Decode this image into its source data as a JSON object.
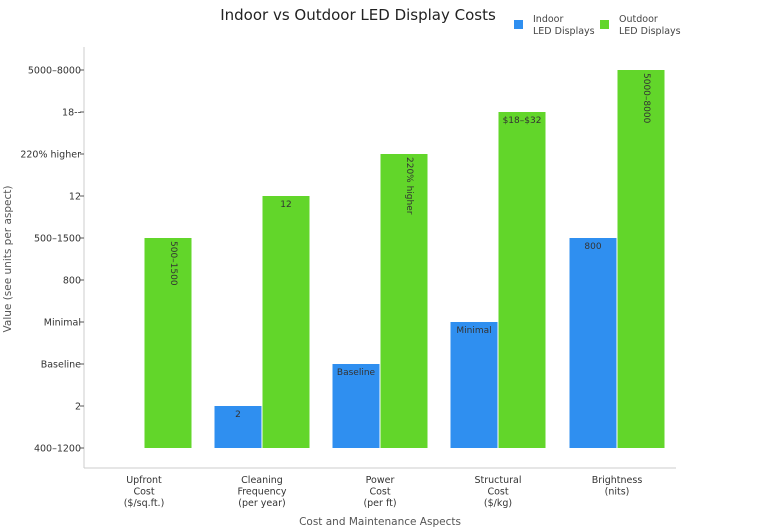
{
  "chart_data": {
    "type": "bar",
    "title": "Indoor vs Outdoor LED Display Costs",
    "xlabel": "Cost and Maintenance Aspects",
    "ylabel": "Value (see units per aspect)",
    "y_ticks": [
      "400–1200",
      "2",
      "Baseline",
      "Minimal",
      "800",
      "500–1500",
      "12",
      "220% higher",
      "18--",
      "5000–8000"
    ],
    "categories": [
      [
        "Upfront",
        "Cost",
        "($/sq.ft.)"
      ],
      [
        "Cleaning",
        "Frequency",
        "(per year)"
      ],
      [
        "Power",
        "Cost",
        "(per ft)"
      ],
      [
        "Structural",
        "Cost",
        "($/kg)"
      ],
      [
        "Brightness",
        "(nits)"
      ]
    ],
    "series": [
      {
        "name": "Indoor\nLED Displays",
        "color": "#2f8ff0",
        "values": [
          0,
          1,
          2,
          3,
          5
        ],
        "labels": [
          "",
          "2",
          "Baseline",
          "Minimal",
          "800"
        ],
        "label_rotated": false
      },
      {
        "name": "Outdoor\nLED Displays",
        "color": "#62d62a",
        "values": [
          5,
          6,
          7,
          8,
          9
        ],
        "labels": [
          "500–1500",
          "12",
          "220% higher",
          "$18–$32",
          "5000–8000"
        ],
        "label_rotated": [
          true,
          false,
          true,
          false,
          true
        ]
      }
    ],
    "grid": false,
    "legend": "top-right"
  }
}
